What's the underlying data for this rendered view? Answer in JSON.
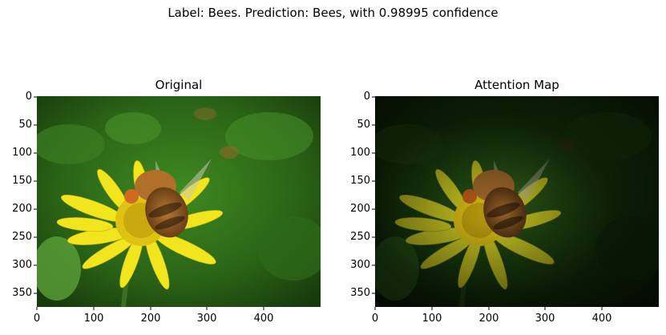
{
  "suptitle": "Label: Bees. Prediction: Bees, with 0.98995 confidence",
  "panels": [
    {
      "title": "Original",
      "attention_overlay": false
    },
    {
      "title": "Attention Map",
      "attention_overlay": true
    }
  ],
  "axes": {
    "x_ticks": [
      "0",
      "100",
      "200",
      "300",
      "400"
    ],
    "y_ticks": [
      "0",
      "50",
      "100",
      "150",
      "200",
      "250",
      "300",
      "350"
    ]
  },
  "colors": {
    "background_green": "#2e6a1c",
    "petal_yellow": "#f3e51d",
    "bee_brown": "#9a5a1f",
    "attention_dim": "#000000"
  }
}
